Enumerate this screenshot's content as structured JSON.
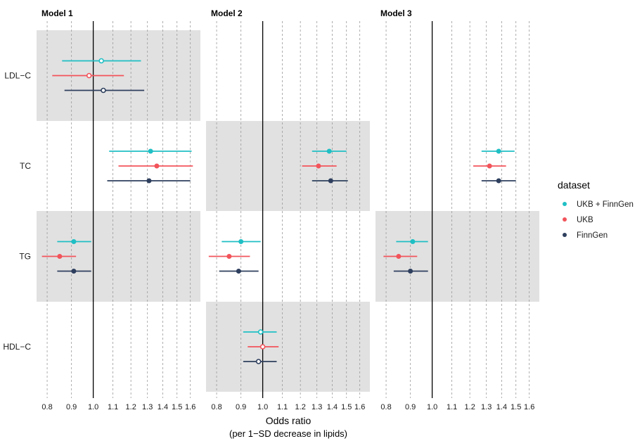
{
  "chart_data": {
    "type": "forest",
    "x_title": "Odds ratio",
    "x_subtitle": "(per 1−SD decrease in lipids)",
    "x_ticks": [
      0.8,
      0.9,
      1.0,
      1.1,
      1.2,
      1.3,
      1.4,
      1.5,
      1.6
    ],
    "x_tick_labels": [
      "0.8",
      "0.9",
      "1.0",
      "1.1",
      "1.2",
      "1.3",
      "1.4",
      "1.5",
      "1.6"
    ],
    "x_scale": "log",
    "xlim": [
      0.76,
      1.68
    ],
    "reference_line": 1.0,
    "rows": [
      "LDL−C",
      "TC",
      "TG",
      "HDL−C"
    ],
    "legend": {
      "title": "dataset",
      "entries": [
        {
          "label": "UKB + FinnGen",
          "color": "#1fbfc4"
        },
        {
          "label": "UKB",
          "color": "#f2545b"
        },
        {
          "label": "FinnGen",
          "color": "#2e3f5e"
        }
      ]
    },
    "panels": [
      {
        "title": "Model 1",
        "shaded_rows": [
          0,
          2
        ],
        "estimates": [
          {
            "row": 0,
            "dataset": 0,
            "or": 1.04,
            "lo": 0.86,
            "hi": 1.26,
            "hollow": true
          },
          {
            "row": 0,
            "dataset": 1,
            "or": 0.98,
            "lo": 0.82,
            "hi": 1.16,
            "hollow": true
          },
          {
            "row": 0,
            "dataset": 2,
            "or": 1.05,
            "lo": 0.87,
            "hi": 1.28,
            "hollow": true
          },
          {
            "row": 1,
            "dataset": 0,
            "or": 1.32,
            "lo": 1.08,
            "hi": 1.61,
            "hollow": false
          },
          {
            "row": 1,
            "dataset": 1,
            "or": 1.36,
            "lo": 1.13,
            "hi": 1.62,
            "hollow": false
          },
          {
            "row": 1,
            "dataset": 2,
            "or": 1.31,
            "lo": 1.07,
            "hi": 1.6,
            "hollow": false
          },
          {
            "row": 2,
            "dataset": 0,
            "or": 0.91,
            "lo": 0.84,
            "hi": 0.99,
            "hollow": false
          },
          {
            "row": 2,
            "dataset": 1,
            "or": 0.85,
            "lo": 0.78,
            "hi": 0.92,
            "hollow": false
          },
          {
            "row": 2,
            "dataset": 2,
            "or": 0.91,
            "lo": 0.84,
            "hi": 0.99,
            "hollow": false
          }
        ]
      },
      {
        "title": "Model 2",
        "shaded_rows": [
          1,
          3
        ],
        "estimates": [
          {
            "row": 1,
            "dataset": 0,
            "or": 1.38,
            "lo": 1.27,
            "hi": 1.5,
            "hollow": false
          },
          {
            "row": 1,
            "dataset": 1,
            "or": 1.31,
            "lo": 1.21,
            "hi": 1.43,
            "hollow": false
          },
          {
            "row": 1,
            "dataset": 2,
            "or": 1.39,
            "lo": 1.27,
            "hi": 1.51,
            "hollow": false
          },
          {
            "row": 2,
            "dataset": 0,
            "or": 0.9,
            "lo": 0.82,
            "hi": 0.99,
            "hollow": false
          },
          {
            "row": 2,
            "dataset": 1,
            "or": 0.85,
            "lo": 0.77,
            "hi": 0.94,
            "hollow": false
          },
          {
            "row": 2,
            "dataset": 2,
            "or": 0.89,
            "lo": 0.81,
            "hi": 0.98,
            "hollow": false
          },
          {
            "row": 3,
            "dataset": 0,
            "or": 0.99,
            "lo": 0.91,
            "hi": 1.07,
            "hollow": true
          },
          {
            "row": 3,
            "dataset": 1,
            "or": 1.0,
            "lo": 0.93,
            "hi": 1.08,
            "hollow": true
          },
          {
            "row": 3,
            "dataset": 2,
            "or": 0.98,
            "lo": 0.91,
            "hi": 1.07,
            "hollow": true
          }
        ]
      },
      {
        "title": "Model 3",
        "shaded_rows": [
          2
        ],
        "estimates": [
          {
            "row": 1,
            "dataset": 0,
            "or": 1.38,
            "lo": 1.27,
            "hi": 1.49,
            "hollow": false
          },
          {
            "row": 1,
            "dataset": 1,
            "or": 1.32,
            "lo": 1.22,
            "hi": 1.43,
            "hollow": false
          },
          {
            "row": 1,
            "dataset": 2,
            "or": 1.38,
            "lo": 1.27,
            "hi": 1.5,
            "hollow": false
          },
          {
            "row": 2,
            "dataset": 0,
            "or": 0.91,
            "lo": 0.84,
            "hi": 0.98,
            "hollow": false
          },
          {
            "row": 2,
            "dataset": 1,
            "or": 0.85,
            "lo": 0.79,
            "hi": 0.93,
            "hollow": false
          },
          {
            "row": 2,
            "dataset": 2,
            "or": 0.9,
            "lo": 0.83,
            "hi": 0.98,
            "hollow": false
          }
        ]
      }
    ]
  }
}
